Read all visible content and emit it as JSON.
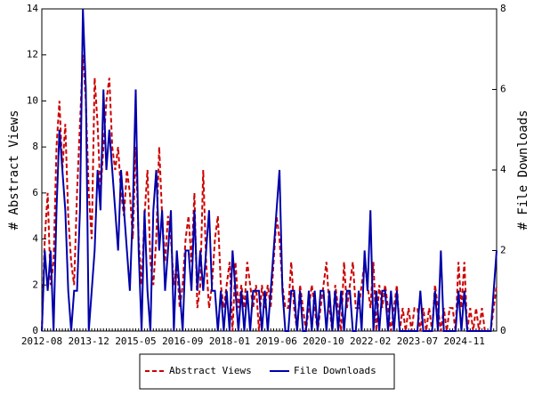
{
  "chart_data": {
    "type": "line",
    "ylabel": "# Abstract Views",
    "y2label": "# File Downloads",
    "categories": [
      "2012-08",
      null,
      null,
      null,
      null,
      null,
      null,
      null,
      null,
      null,
      null,
      null,
      null,
      null,
      null,
      null,
      "2013-12",
      null,
      null,
      null,
      null,
      null,
      null,
      null,
      null,
      null,
      null,
      null,
      null,
      null,
      null,
      null,
      "2015-05",
      null,
      null,
      null,
      null,
      null,
      null,
      null,
      null,
      null,
      null,
      null,
      null,
      null,
      null,
      null,
      "2016-09",
      null,
      null,
      null,
      null,
      null,
      null,
      null,
      null,
      null,
      null,
      null,
      null,
      null,
      null,
      null,
      "2018-01",
      null,
      null,
      null,
      null,
      null,
      null,
      null,
      null,
      null,
      null,
      null,
      null,
      null,
      null,
      null,
      "2019-06",
      null,
      null,
      null,
      null,
      null,
      null,
      null,
      null,
      null,
      null,
      null,
      null,
      null,
      null,
      null,
      "2020-10",
      null,
      null,
      null,
      null,
      null,
      null,
      null,
      null,
      null,
      null,
      null,
      null,
      null,
      null,
      null,
      "2022-02",
      null,
      null,
      null,
      null,
      null,
      null,
      null,
      null,
      null,
      null,
      null,
      null,
      null,
      null,
      null,
      "2023-07",
      null,
      null,
      null,
      null,
      null,
      null,
      null,
      null,
      null,
      null,
      null,
      null,
      null,
      null,
      null,
      "2024-11",
      null,
      null,
      null,
      null,
      null,
      null,
      null,
      null,
      null,
      null,
      null
    ],
    "series": [
      {
        "name": "Abstract Views",
        "color": "#cc0000",
        "dashed": true,
        "values": [
          0,
          4,
          6,
          2,
          3,
          8,
          10,
          7,
          9,
          5,
          3,
          2,
          6,
          9,
          12,
          10,
          6,
          4,
          11,
          9,
          6,
          8,
          10,
          11,
          8,
          7,
          8,
          6,
          5,
          7,
          6,
          4,
          8,
          4,
          2,
          5,
          7,
          3,
          2,
          4,
          8,
          5,
          3,
          5,
          4,
          2,
          3,
          1,
          2,
          4,
          5,
          3,
          6,
          1,
          2,
          7,
          3,
          1,
          2,
          4,
          5,
          2,
          1,
          2,
          3,
          0,
          3,
          1,
          2,
          1,
          3,
          2,
          1,
          2,
          0,
          2,
          1,
          2,
          1,
          3,
          5,
          4,
          2,
          1,
          1,
          3,
          1,
          0,
          2,
          1,
          0,
          1,
          2,
          1,
          0,
          1,
          2,
          3,
          1,
          0,
          2,
          1,
          0,
          3,
          1,
          2,
          3,
          1,
          1,
          2,
          3,
          2,
          1,
          3,
          0,
          2,
          1,
          2,
          1,
          0,
          1,
          2,
          0,
          1,
          0,
          1,
          0,
          1,
          1,
          0,
          1,
          0,
          1,
          0,
          2,
          1,
          0,
          1,
          0,
          1,
          1,
          0,
          3,
          1,
          3,
          0,
          1,
          0,
          1,
          0,
          1,
          0,
          0,
          0,
          1,
          2
        ]
      },
      {
        "name": "File Downloads",
        "color": "#0000aa",
        "dashed": false,
        "axis": "y2",
        "values": [
          0,
          2,
          1,
          2,
          0,
          3,
          5,
          4,
          3,
          1,
          0,
          1,
          1,
          3,
          8,
          6,
          0,
          1,
          2,
          4,
          3,
          6,
          4,
          5,
          4,
          3,
          2,
          4,
          3,
          2,
          1,
          3,
          6,
          2,
          0,
          3,
          1,
          0,
          3,
          4,
          2,
          3,
          1,
          2,
          3,
          0,
          2,
          1,
          0,
          2,
          2,
          1,
          3,
          1,
          2,
          1,
          2,
          3,
          1,
          1,
          0,
          1,
          0,
          1,
          0,
          2,
          1,
          0,
          1,
          0,
          1,
          0,
          1,
          1,
          1,
          0,
          1,
          0,
          1,
          2,
          3,
          4,
          1,
          0,
          0,
          1,
          1,
          0,
          1,
          0,
          0,
          1,
          0,
          1,
          0,
          1,
          1,
          0,
          1,
          0,
          1,
          0,
          1,
          0,
          1,
          1,
          0,
          0,
          1,
          0,
          2,
          1,
          3,
          0,
          1,
          0,
          1,
          1,
          0,
          1,
          0,
          1,
          0,
          0,
          0,
          0,
          0,
          0,
          0,
          1,
          0,
          0,
          0,
          0,
          1,
          0,
          2,
          0,
          0,
          0,
          0,
          0,
          1,
          0,
          1,
          0,
          0,
          0,
          0,
          0,
          0,
          0,
          0,
          0,
          1,
          2
        ]
      }
    ],
    "ylim": [
      0,
      14
    ],
    "yticks": [
      0,
      2,
      4,
      6,
      8,
      10,
      12,
      14
    ],
    "y2lim": [
      0,
      8
    ],
    "y2ticks": [
      0,
      2,
      4,
      6,
      8
    ],
    "legend": "bottom"
  }
}
